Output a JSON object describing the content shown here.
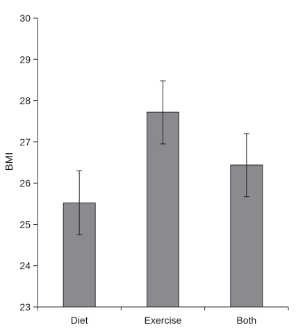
{
  "chart_data": {
    "type": "bar",
    "categories": [
      "Diet",
      "Exercise",
      "Both"
    ],
    "values": [
      25.52,
      27.72,
      26.44
    ],
    "error_low": [
      24.75,
      26.95,
      25.67
    ],
    "error_high": [
      26.3,
      28.48,
      27.2
    ],
    "ylabel": "BMI",
    "xlabel": "",
    "ylim": [
      23,
      30
    ],
    "yticks": [
      23,
      24,
      25,
      26,
      27,
      28,
      29,
      30
    ],
    "grid": false,
    "legend": "none",
    "bar_color": "#8a8b8f",
    "edge_color": "#2a2a2a"
  }
}
